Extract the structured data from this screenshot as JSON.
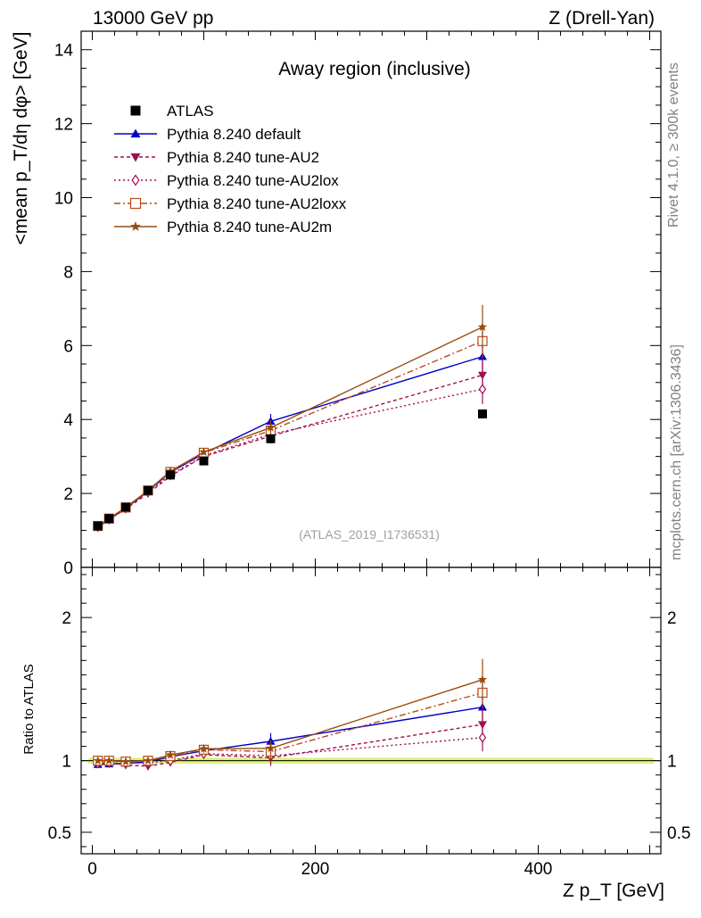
{
  "header": {
    "left": "13000 GeV pp",
    "right": "Z (Drell-Yan)"
  },
  "side": {
    "rivet": "Rivet 4.1.0, ≥ 300k events",
    "mcplots": "mcplots.cern.ch [arXiv:1306.3436]"
  },
  "chart_data": {
    "type": "scatter",
    "title": "Away region (inclusive)",
    "analysis_label": "(ATLAS_2019_I1736531)",
    "xlabel": "Z p_T [GeV]",
    "ylabel": "<mean p_T/dη dφ> [GeV]",
    "ratio_ylabel": "Ratio to ATLAS",
    "xlim": [
      -10,
      510
    ],
    "ylim": [
      0,
      14.5
    ],
    "ratio_ylim": [
      0.35,
      2.35
    ],
    "x_ticks": [
      0,
      200,
      400
    ],
    "x_tick_labels": [
      "0",
      "200",
      "400"
    ],
    "y_ticks": [
      0,
      2,
      4,
      6,
      8,
      10,
      12,
      14
    ],
    "y_tick_labels": [
      "0",
      "2",
      "4",
      "6",
      "8",
      "10",
      "12",
      "14"
    ],
    "ratio_ticks": [
      0.5,
      1,
      2
    ],
    "ratio_tick_labels": [
      "0.5",
      "1",
      "2"
    ],
    "x": [
      5,
      15,
      30,
      50,
      70,
      100,
      160,
      350
    ],
    "data": {
      "name": "ATLAS",
      "values": [
        1.12,
        1.32,
        1.63,
        2.08,
        2.5,
        2.88,
        3.48,
        4.15
      ],
      "band_rel": 0.02
    },
    "series": [
      {
        "name": "Pythia 8.240 default",
        "color": "#0000c8",
        "dash": "",
        "marker": "triangle-up",
        "values": [
          1.09,
          1.29,
          1.6,
          2.06,
          2.57,
          3.08,
          3.95,
          5.7
        ],
        "errors": [
          0.02,
          0.02,
          0.03,
          0.03,
          0.05,
          0.08,
          0.2,
          0.4
        ]
      },
      {
        "name": "Pythia 8.240 tune-AU2",
        "color": "#a01050",
        "dash": "4,3",
        "marker": "triangle-down",
        "values": [
          1.1,
          1.3,
          1.58,
          2.0,
          2.47,
          3.0,
          3.55,
          5.2
        ],
        "errors": [
          0.02,
          0.02,
          0.03,
          0.03,
          0.05,
          0.08,
          0.2,
          0.45
        ]
      },
      {
        "name": "Pythia 8.240 tune-AU2lox",
        "color": "#a01050",
        "dash": "2,3",
        "marker": "diamond-open",
        "values": [
          1.1,
          1.3,
          1.6,
          2.05,
          2.5,
          3.02,
          3.6,
          4.82
        ],
        "errors": [
          0.02,
          0.02,
          0.03,
          0.03,
          0.05,
          0.08,
          0.2,
          0.4
        ]
      },
      {
        "name": "Pythia 8.240 tune-AU2loxx",
        "color": "#b84a1c",
        "dash": "7,3,2,3",
        "marker": "square-open",
        "values": [
          1.12,
          1.32,
          1.62,
          2.08,
          2.58,
          3.1,
          3.7,
          6.12
        ],
        "errors": [
          0.02,
          0.02,
          0.03,
          0.03,
          0.05,
          0.08,
          0.2,
          0.45
        ]
      },
      {
        "name": "Pythia 8.240 tune-AU2m",
        "color": "#9a4c0c",
        "dash": "",
        "marker": "star",
        "values": [
          1.12,
          1.32,
          1.62,
          2.08,
          2.6,
          3.12,
          3.78,
          6.5
        ],
        "errors": [
          0.02,
          0.02,
          0.03,
          0.03,
          0.05,
          0.08,
          0.2,
          0.6
        ]
      }
    ]
  }
}
